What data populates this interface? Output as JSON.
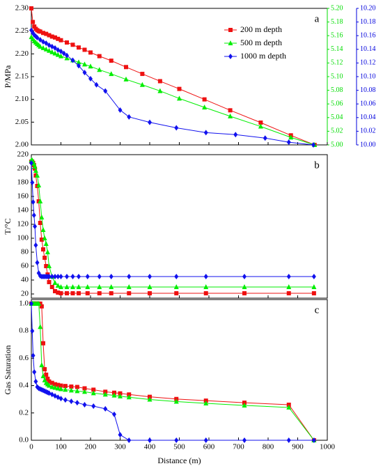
{
  "chart_data": [
    {
      "type": "line",
      "panel_label": "a",
      "ylabel": "P/MPa",
      "legend": "upper right",
      "xlim": [
        0,
        1000
      ],
      "xticks": [
        0,
        100,
        200,
        300,
        400,
        500,
        600,
        700,
        800,
        900,
        1000
      ],
      "ylim": [
        2.0,
        2.3
      ],
      "yticks": [
        {
          "value": 2.0,
          "label": "2.00"
        },
        {
          "value": 2.05,
          "label": "2.05"
        },
        {
          "value": 2.1,
          "label": "2.10"
        },
        {
          "value": 2.15,
          "label": "2.15"
        },
        {
          "value": 2.2,
          "label": "2.20"
        },
        {
          "value": 2.25,
          "label": "2.25"
        },
        {
          "value": 2.3,
          "label": "2.30"
        }
      ],
      "y2lim": [
        5.0,
        5.2
      ],
      "y2color": "#00dd00",
      "y2ticks": [
        {
          "value": 5.0,
          "label": "5.00"
        },
        {
          "value": 5.02,
          "label": "5.02"
        },
        {
          "value": 5.04,
          "label": "5.04"
        },
        {
          "value": 5.06,
          "label": "5.06"
        },
        {
          "value": 5.08,
          "label": "5.08"
        },
        {
          "value": 5.1,
          "label": "5.10"
        },
        {
          "value": 5.12,
          "label": "5.12"
        },
        {
          "value": 5.14,
          "label": "5.14"
        },
        {
          "value": 5.16,
          "label": "5.16"
        },
        {
          "value": 5.18,
          "label": "5.18"
        },
        {
          "value": 5.2,
          "label": "5.20"
        }
      ],
      "y3lim": [
        10.0,
        10.2
      ],
      "y3color": "#0000dd",
      "y3ticks": [
        {
          "value": 10.0,
          "label": "10.00"
        },
        {
          "value": 10.02,
          "label": "10.02"
        },
        {
          "value": 10.04,
          "label": "10.04"
        },
        {
          "value": 10.06,
          "label": "10.06"
        },
        {
          "value": 10.08,
          "label": "10.08"
        },
        {
          "value": 10.1,
          "label": "10.10"
        },
        {
          "value": 10.12,
          "label": "10.12"
        },
        {
          "value": 10.14,
          "label": "10.14"
        },
        {
          "value": 10.16,
          "label": "10.16"
        },
        {
          "value": 10.18,
          "label": "10.18"
        },
        {
          "value": 10.2,
          "label": "10.20"
        }
      ],
      "series": [
        {
          "name": "200 m depth",
          "color": "#ee1111",
          "marker": "square",
          "x": [
            0,
            5,
            10,
            15,
            20,
            25,
            30,
            40,
            50,
            60,
            70,
            80,
            90,
            100,
            120,
            140,
            160,
            180,
            200,
            230,
            270,
            320,
            375,
            435,
            500,
            585,
            672,
            775,
            877,
            957
          ],
          "values": [
            2.3,
            2.27,
            2.26,
            2.255,
            2.252,
            2.25,
            2.249,
            2.246,
            2.244,
            2.241,
            2.238,
            2.236,
            2.233,
            2.23,
            2.225,
            2.22,
            2.214,
            2.209,
            2.203,
            2.195,
            2.185,
            2.171,
            2.156,
            2.14,
            2.123,
            2.1,
            2.076,
            2.049,
            2.021,
            2.0
          ]
        },
        {
          "name": "500 m depth",
          "color": "#00ee00",
          "marker": "triangle",
          "axis": "y2",
          "x": [
            0,
            5,
            10,
            15,
            20,
            25,
            30,
            40,
            50,
            60,
            70,
            80,
            90,
            100,
            120,
            140,
            160,
            180,
            200,
            230,
            270,
            320,
            375,
            435,
            500,
            585,
            672,
            775,
            877,
            957
          ],
          "values": [
            5.158,
            5.155,
            5.152,
            5.15,
            5.148,
            5.146,
            5.144,
            5.142,
            5.14,
            5.138,
            5.136,
            5.134,
            5.132,
            5.13,
            5.127,
            5.124,
            5.121,
            5.118,
            5.115,
            5.11,
            5.104,
            5.096,
            5.088,
            5.079,
            5.068,
            5.055,
            5.042,
            5.027,
            5.011,
            5.0
          ]
        },
        {
          "name": "1000 m depth",
          "color": "#1111ee",
          "marker": "diamond",
          "axis": "y3",
          "x": [
            0,
            5,
            10,
            15,
            20,
            30,
            40,
            50,
            60,
            70,
            80,
            90,
            100,
            110,
            120,
            140,
            160,
            180,
            200,
            220,
            250,
            300,
            330,
            400,
            490,
            590,
            690,
            790,
            870,
            953
          ],
          "values": [
            10.168,
            10.164,
            10.161,
            10.159,
            10.157,
            10.154,
            10.151,
            10.149,
            10.146,
            10.144,
            10.142,
            10.139,
            10.137,
            10.134,
            10.131,
            10.124,
            10.116,
            10.106,
            10.097,
            10.088,
            10.079,
            10.051,
            10.041,
            10.033,
            10.025,
            10.018,
            10.015,
            10.01,
            10.004,
            10.0
          ]
        }
      ]
    },
    {
      "type": "line",
      "panel_label": "b",
      "ylabel": "T/°C",
      "xlim": [
        0,
        1000
      ],
      "xticks": [
        0,
        100,
        200,
        300,
        400,
        500,
        600,
        700,
        800,
        900,
        1000
      ],
      "ylim": [
        14,
        220
      ],
      "yticks": [
        20,
        40,
        60,
        80,
        100,
        120,
        140,
        160,
        180,
        200,
        220
      ],
      "series": [
        {
          "color": "#ee1111",
          "marker": "square",
          "x": [
            0,
            3,
            6,
            9,
            12,
            15,
            20,
            25,
            30,
            35,
            40,
            45,
            50,
            55,
            60,
            70,
            80,
            90,
            100,
            120,
            140,
            160,
            190,
            230,
            270,
            330,
            400,
            490,
            590,
            720,
            870,
            955
          ],
          "values": [
            210,
            210,
            208,
            205,
            200,
            190,
            175,
            153,
            122,
            98,
            84,
            72,
            60,
            48,
            37,
            30,
            24,
            22,
            21,
            21,
            21,
            21,
            21,
            21,
            21,
            21,
            21,
            21,
            21,
            21,
            21,
            21
          ]
        },
        {
          "color": "#00ee00",
          "marker": "triangle",
          "x": [
            0,
            3,
            6,
            9,
            12,
            15,
            20,
            25,
            30,
            35,
            40,
            45,
            50,
            55,
            60,
            70,
            80,
            90,
            100,
            120,
            140,
            160,
            190,
            230,
            270,
            330,
            400,
            490,
            590,
            720,
            870,
            955
          ],
          "values": [
            212,
            212,
            210,
            207,
            203,
            197,
            190,
            176,
            153,
            130,
            112,
            100,
            92,
            80,
            60,
            45,
            36,
            32,
            30,
            30,
            30,
            30,
            30,
            30,
            30,
            30,
            30,
            30,
            30,
            30,
            30,
            30
          ]
        },
        {
          "color": "#1111ee",
          "marker": "diamond",
          "x": [
            0,
            3,
            6,
            9,
            12,
            15,
            20,
            25,
            30,
            35,
            40,
            45,
            50,
            55,
            60,
            70,
            80,
            90,
            100,
            120,
            140,
            160,
            190,
            230,
            270,
            330,
            400,
            490,
            590,
            720,
            870,
            955
          ],
          "values": [
            208,
            180,
            152,
            133,
            117,
            90,
            65,
            50,
            46,
            45,
            45,
            45,
            45,
            45,
            45,
            45,
            45,
            45,
            45,
            45,
            45,
            45,
            45,
            45,
            45,
            45,
            45,
            45,
            45,
            45,
            45,
            45
          ]
        }
      ]
    },
    {
      "type": "line",
      "panel_label": "c",
      "ylabel": "Gas Saturation",
      "xlabel": "Distance (m)",
      "xlim": [
        0,
        1000
      ],
      "xticks": [
        0,
        100,
        200,
        300,
        400,
        500,
        600,
        700,
        800,
        900,
        1000
      ],
      "ylim": [
        0,
        1.03
      ],
      "yticks": [
        {
          "value": 0,
          "label": "0.0"
        },
        0.2,
        0.4,
        0.6,
        0.8,
        {
          "value": 1,
          "label": "1.0"
        }
      ],
      "series": [
        {
          "color": "#ee1111",
          "marker": "square",
          "x": [
            0,
            3,
            6,
            10,
            15,
            20,
            25,
            30,
            35,
            40,
            45,
            50,
            55,
            60,
            70,
            80,
            90,
            100,
            115,
            135,
            155,
            180,
            210,
            250,
            280,
            300,
            330,
            400,
            490,
            590,
            720,
            870,
            955
          ],
          "values": [
            1,
            1,
            1,
            1,
            1,
            1,
            1,
            1,
            0.98,
            0.71,
            0.52,
            0.48,
            0.45,
            0.43,
            0.42,
            0.41,
            0.405,
            0.4,
            0.397,
            0.393,
            0.39,
            0.38,
            0.37,
            0.355,
            0.348,
            0.343,
            0.335,
            0.318,
            0.302,
            0.29,
            0.275,
            0.26,
            0
          ]
        },
        {
          "color": "#00ee00",
          "marker": "triangle",
          "x": [
            0,
            3,
            6,
            10,
            15,
            20,
            25,
            30,
            35,
            40,
            45,
            50,
            55,
            60,
            70,
            80,
            90,
            100,
            115,
            135,
            155,
            180,
            210,
            250,
            280,
            300,
            330,
            400,
            490,
            590,
            720,
            870,
            955
          ],
          "values": [
            1,
            1,
            1,
            1,
            1,
            1,
            1,
            0.83,
            0.55,
            0.47,
            0.44,
            0.42,
            0.41,
            0.4,
            0.39,
            0.385,
            0.38,
            0.375,
            0.37,
            0.365,
            0.36,
            0.355,
            0.345,
            0.335,
            0.328,
            0.322,
            0.315,
            0.298,
            0.283,
            0.27,
            0.255,
            0.24,
            0
          ]
        },
        {
          "color": "#1111ee",
          "marker": "diamond",
          "x": [
            0,
            3,
            6,
            10,
            15,
            20,
            25,
            30,
            35,
            40,
            45,
            50,
            55,
            60,
            70,
            80,
            90,
            100,
            115,
            135,
            155,
            180,
            210,
            250,
            280,
            300,
            330,
            400,
            490,
            590,
            720,
            870,
            955
          ],
          "values": [
            1,
            0.8,
            0.62,
            0.5,
            0.43,
            0.39,
            0.38,
            0.375,
            0.37,
            0.365,
            0.36,
            0.355,
            0.35,
            0.345,
            0.335,
            0.325,
            0.315,
            0.305,
            0.295,
            0.285,
            0.275,
            0.26,
            0.25,
            0.23,
            0.19,
            0.04,
            0,
            0,
            0,
            0,
            0,
            0,
            0
          ]
        }
      ]
    }
  ]
}
